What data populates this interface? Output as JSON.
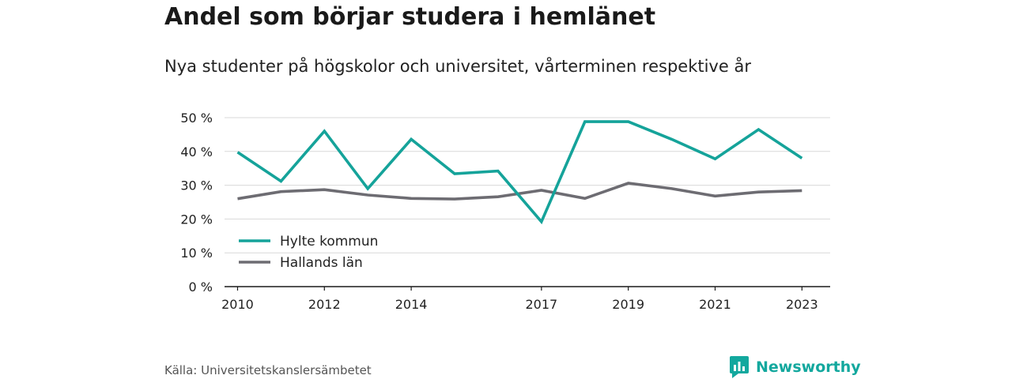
{
  "title": "Andel som börjar studera i hemlänet",
  "subtitle": "Nya studenter på högskolor och universitet, vårterminen respektive år",
  "source": "Källa: Universitetskanslersämbetet",
  "brand": {
    "name": "Newsworthy",
    "icon": "newsworthy-logo-icon",
    "color": "#13a89e"
  },
  "chart_data": {
    "type": "line",
    "x": [
      2010,
      2011,
      2012,
      2013,
      2014,
      2015,
      2016,
      2017,
      2018,
      2019,
      2020,
      2021,
      2022,
      2023
    ],
    "x_tick_labels": [
      "2010",
      "2012",
      "2014",
      "2017",
      "2019",
      "2021",
      "2023"
    ],
    "x_tick_values": [
      2010,
      2012,
      2014,
      2017,
      2019,
      2021,
      2023
    ],
    "y_tick_labels": [
      "0 %",
      "10 %",
      "20 %",
      "30 %",
      "40 %",
      "50 %"
    ],
    "y_tick_values": [
      0,
      10,
      20,
      30,
      40,
      50
    ],
    "ylim": [
      0,
      50
    ],
    "xlim": [
      2009.7,
      2023.65
    ],
    "y_unit": "%",
    "grid": "horizontal",
    "legend_position": "bottom-left",
    "series": [
      {
        "name": "Hylte kommun",
        "color": "#15a39a",
        "values": [
          39.8,
          31.2,
          46.0,
          29.0,
          43.6,
          33.4,
          34.2,
          19.2,
          48.8,
          48.8,
          43.6,
          37.8,
          46.5,
          38.0
        ]
      },
      {
        "name": "Hallands län",
        "color": "#6d6c72",
        "values": [
          26.0,
          28.1,
          28.7,
          27.1,
          26.1,
          25.9,
          26.6,
          28.5,
          26.1,
          30.6,
          29.0,
          26.8,
          28.0,
          28.4
        ]
      }
    ]
  }
}
